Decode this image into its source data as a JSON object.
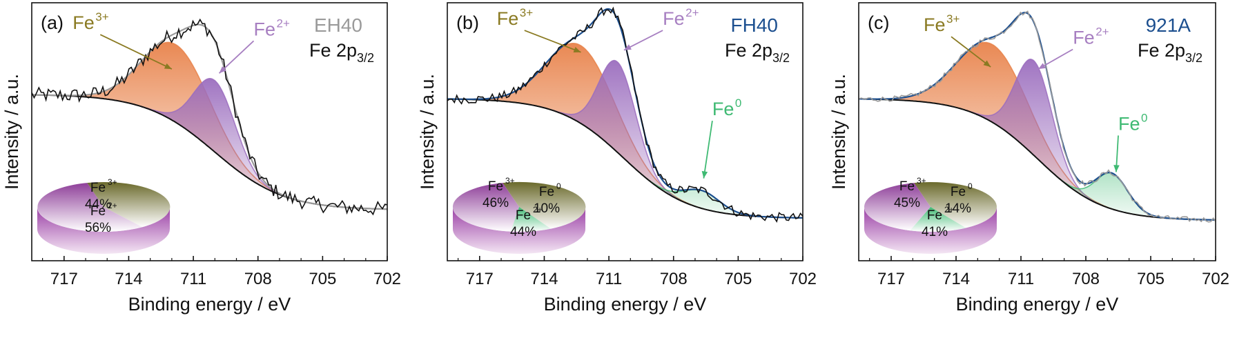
{
  "chart_data": [
    {
      "type": "line",
      "panel_label": "(a)",
      "sample": "EH40",
      "sample_color": "#9a9a9a",
      "region_label": "Fe 2p",
      "region_sub": "3/2",
      "xlabel": "Binding energy / eV",
      "ylabel": "Intensity / a.u.",
      "xlim": [
        718.5,
        702
      ],
      "xticks": [
        717,
        714,
        711,
        708,
        705,
        702
      ],
      "x_reversed": true,
      "ylim": [
        0,
        1
      ],
      "background": {
        "high": 0.62,
        "low": 0.07,
        "center": 710.0,
        "width": 1.6
      },
      "peaks": [
        {
          "name": "Fe",
          "sup": "3+",
          "center": 711.8,
          "sigma": 1.55,
          "height": 0.37,
          "color": "#e8824a",
          "label_color": "#8a7a22",
          "label_x": 716.6,
          "label_y": 0.93,
          "arrow_x": 712.0,
          "arrow_y": 0.74
        },
        {
          "name": "Fe",
          "sup": "2+",
          "center": 710.0,
          "sigma": 0.95,
          "height": 0.34,
          "color": "#9b6dbe",
          "label_color": "#a77fc1",
          "label_x": 708.2,
          "label_y": 0.9,
          "arrow_x": 709.8,
          "arrow_y": 0.72
        }
      ],
      "experimental_noise": 0.035,
      "pie": [
        {
          "name": "Fe",
          "sup": "3+",
          "percent": 44,
          "color": "#6b6a2c"
        },
        {
          "name": "Fe",
          "sup": "2+",
          "percent": 56,
          "color": "#8e3f99"
        }
      ]
    },
    {
      "type": "line",
      "panel_label": "(b)",
      "sample": "FH40",
      "sample_color": "#1c4f8f",
      "region_label": "Fe 2p",
      "region_sub": "3/2",
      "xlabel": "Binding energy / eV",
      "ylabel": "Intensity / a.u.",
      "xlim": [
        718.5,
        702
      ],
      "xticks": [
        717,
        714,
        711,
        708,
        705,
        702
      ],
      "x_reversed": true,
      "ylim": [
        0,
        1
      ],
      "background": {
        "high": 0.6,
        "low": 0.03,
        "center": 710.3,
        "width": 1.5
      },
      "peaks": [
        {
          "name": "Fe",
          "sup": "3+",
          "center": 712.3,
          "sigma": 1.55,
          "height": 0.37,
          "color": "#e8824a",
          "label_color": "#8a7a22",
          "label_x": 716.2,
          "label_y": 0.95,
          "arrow_x": 712.3,
          "arrow_y": 0.82
        },
        {
          "name": "Fe",
          "sup": "2+",
          "center": 710.6,
          "sigma": 0.85,
          "height": 0.43,
          "color": "#9b6dbe",
          "label_color": "#a77fc1",
          "label_x": 708.5,
          "label_y": 0.95,
          "arrow_x": 710.3,
          "arrow_y": 0.83
        },
        {
          "name": "Fe",
          "sup": "0",
          "center": 706.7,
          "sigma": 0.85,
          "height": 0.085,
          "color": "#3fba73",
          "label_color": "#3fba73",
          "label_x": 706.2,
          "label_y": 0.52,
          "arrow_x": 706.6,
          "arrow_y": 0.22
        }
      ],
      "experimental_noise": 0.022,
      "pie": [
        {
          "name": "Fe",
          "sup": "3+",
          "percent": 46,
          "color": "#6b6a2c"
        },
        {
          "name": "Fe",
          "sup": "0",
          "percent": 10,
          "color": "#3fba73"
        },
        {
          "name": "Fe",
          "sup": "2+",
          "percent": 44,
          "color": "#8e3f99"
        }
      ]
    },
    {
      "type": "line",
      "panel_label": "(c)",
      "sample": "921A",
      "sample_color": "#1c4f8f",
      "region_label": "Fe 2p",
      "region_sub": "3/2",
      "xlabel": "Binding energy / eV",
      "ylabel": "Intensity / a.u.",
      "xlim": [
        718.5,
        702
      ],
      "xticks": [
        717,
        714,
        711,
        708,
        705,
        702
      ],
      "x_reversed": true,
      "ylim": [
        0,
        1
      ],
      "background": {
        "high": 0.6,
        "low": 0.02,
        "center": 710.2,
        "width": 1.5
      },
      "peaks": [
        {
          "name": "Fe",
          "sup": "3+",
          "center": 712.3,
          "sigma": 1.6,
          "height": 0.37,
          "color": "#e8824a",
          "label_color": "#8a7a22",
          "label_x": 715.5,
          "label_y": 0.92,
          "arrow_x": 712.4,
          "arrow_y": 0.75
        },
        {
          "name": "Fe",
          "sup": "2+",
          "center": 710.4,
          "sigma": 0.85,
          "height": 0.45,
          "color": "#9b6dbe",
          "label_color": "#a77fc1",
          "label_x": 708.6,
          "label_y": 0.86,
          "arrow_x": 710.2,
          "arrow_y": 0.74
        },
        {
          "name": "Fe",
          "sup": "0",
          "center": 706.8,
          "sigma": 0.75,
          "height": 0.17,
          "color": "#3fba73",
          "label_color": "#3fba73",
          "label_x": 706.5,
          "label_y": 0.45,
          "arrow_x": 706.6,
          "arrow_y": 0.25
        }
      ],
      "experimental_noise": 0.012,
      "pie": [
        {
          "name": "Fe",
          "sup": "3+",
          "percent": 45,
          "color": "#6b6a2c"
        },
        {
          "name": "Fe",
          "sup": "0",
          "percent": 14,
          "color": "#3fba73"
        },
        {
          "name": "Fe",
          "sup": "2+",
          "percent": 41,
          "color": "#8e3f99"
        }
      ]
    }
  ]
}
